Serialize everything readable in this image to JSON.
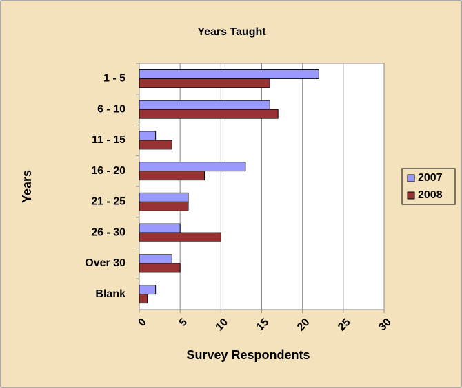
{
  "chart_data": {
    "type": "bar",
    "orientation": "horizontal",
    "title": "Years Taught",
    "x_label": "Survey Respondents",
    "y_label": "Years",
    "categories": [
      "1 - 5",
      "6 - 10",
      "11 - 15",
      "16 - 20",
      "21 - 25",
      "26 - 30",
      "Over 30",
      "Blank"
    ],
    "series": [
      {
        "name": "2007",
        "color": "#9999ff",
        "values": [
          22,
          16,
          2,
          13,
          6,
          5,
          4,
          2
        ]
      },
      {
        "name": "2008",
        "color": "#993333",
        "values": [
          16,
          17,
          4,
          8,
          6,
          10,
          5,
          1
        ]
      }
    ],
    "xlim": [
      0,
      30
    ],
    "xticks": [
      0,
      5,
      10,
      15,
      20,
      25,
      30
    ],
    "grid": true,
    "legend": "right"
  }
}
